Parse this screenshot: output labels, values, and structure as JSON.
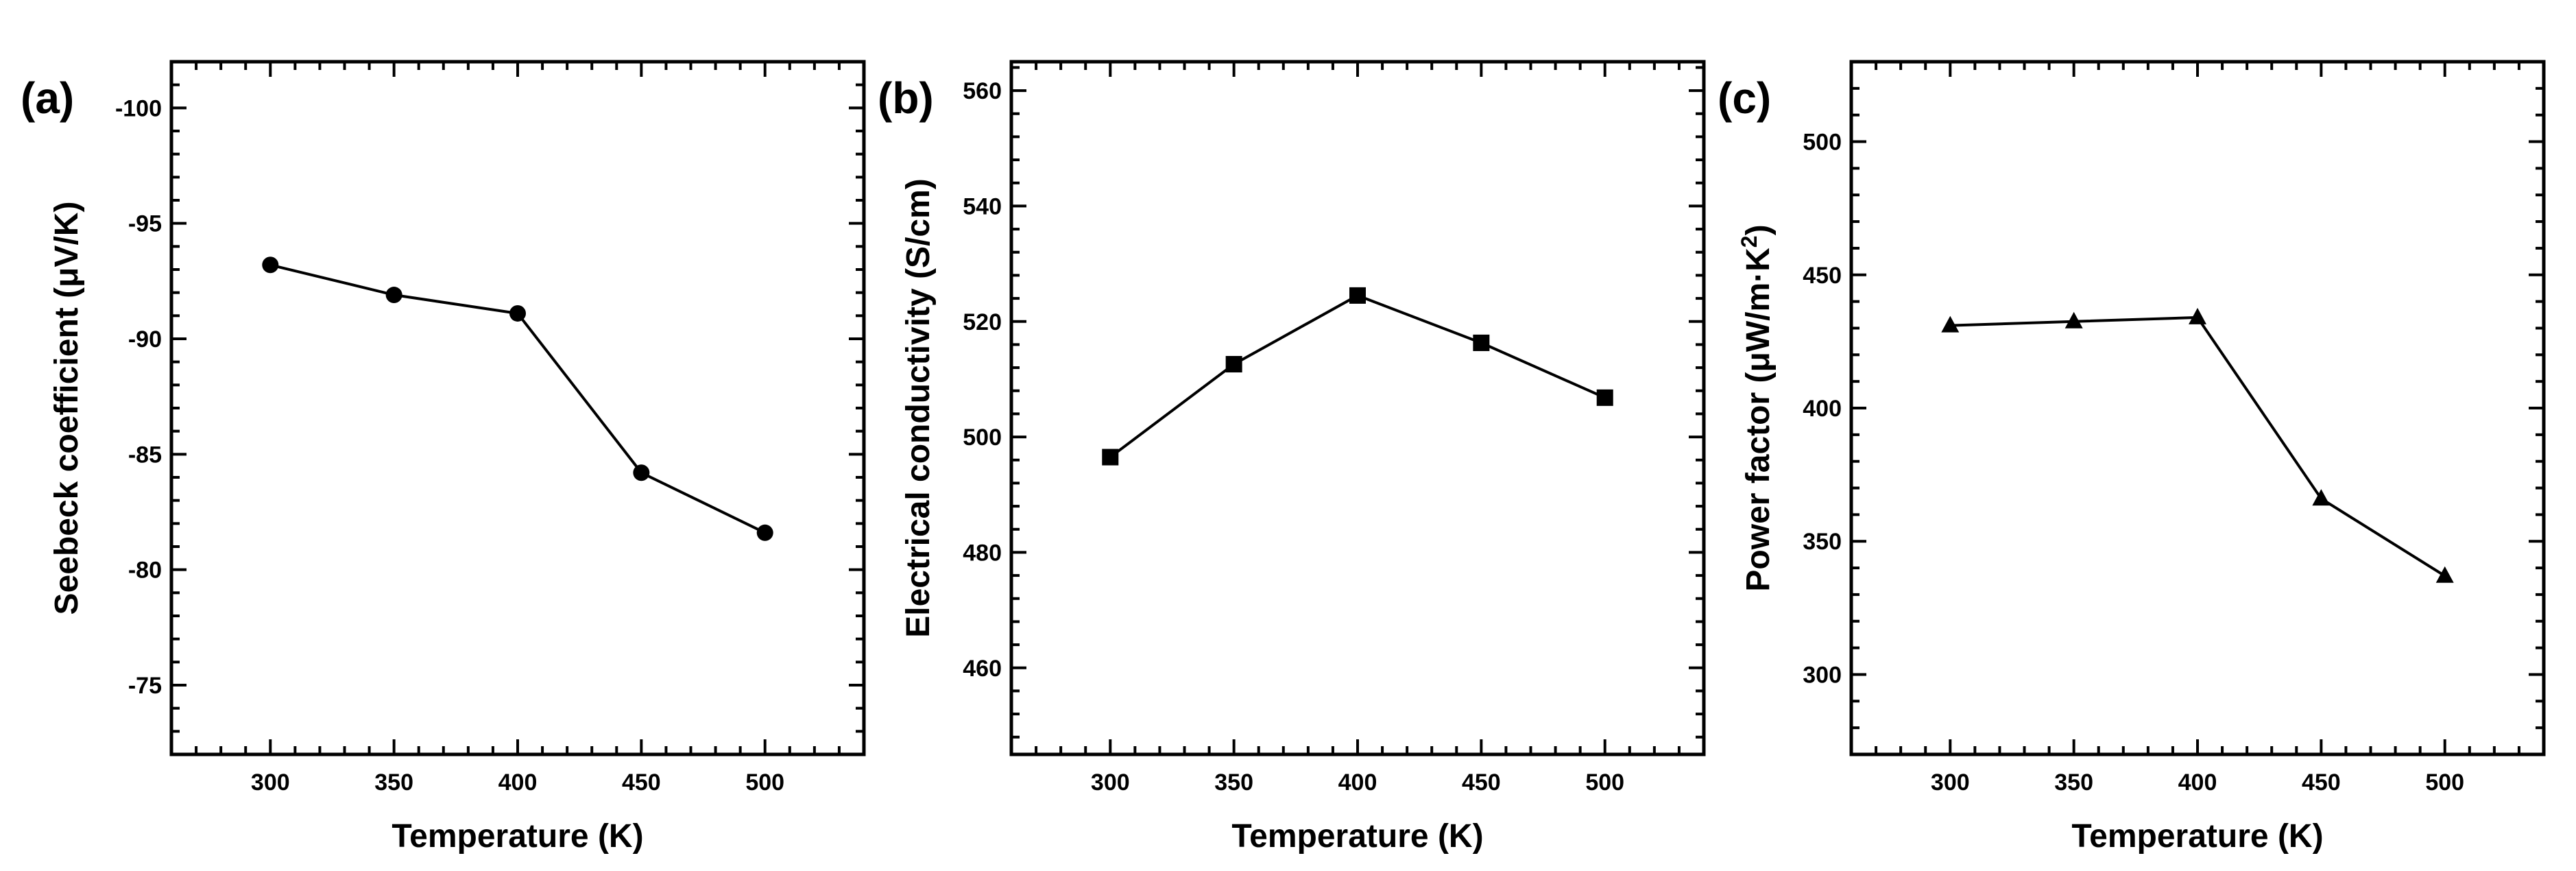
{
  "chart_data": [
    {
      "type": "line",
      "panel_label": "(a)",
      "title": "",
      "xlabel": "Temperature (K)",
      "ylabel_main": "Seebeck coefficient (",
      "ylabel_unit": "μV/K)",
      "x": [
        300,
        350,
        400,
        450,
        500
      ],
      "values": [
        -93.2,
        -91.9,
        -91.1,
        -84.2,
        -81.6
      ],
      "xlim": [
        260,
        540
      ],
      "ylim": [
        -72,
        -102
      ],
      "yticks": [
        -75,
        -80,
        -85,
        -90,
        -95,
        -100
      ],
      "ytick_labels": [
        "-75",
        "-80",
        "-85",
        "-90",
        "-95",
        "-100"
      ],
      "xticks": [
        300,
        350,
        400,
        450,
        500
      ],
      "xtick_labels": [
        "300",
        "350",
        "400",
        "450",
        "500"
      ],
      "marker": "circle",
      "grid": false
    },
    {
      "type": "line",
      "panel_label": "(b)",
      "title": "",
      "xlabel": "Temperature (K)",
      "ylabel_main": "Electrical conductivity (S/cm)",
      "ylabel_unit": "",
      "x": [
        300,
        350,
        400,
        450,
        500
      ],
      "values": [
        496.5,
        512.6,
        524.5,
        516.3,
        506.8
      ],
      "xlim": [
        260,
        540
      ],
      "ylim": [
        445,
        565
      ],
      "yticks": [
        460,
        480,
        500,
        520,
        540,
        560
      ],
      "ytick_labels": [
        "460",
        "480",
        "500",
        "520",
        "540",
        "560"
      ],
      "xticks": [
        300,
        350,
        400,
        450,
        500
      ],
      "xtick_labels": [
        "300",
        "350",
        "400",
        "450",
        "500"
      ],
      "marker": "square",
      "grid": false
    },
    {
      "type": "line",
      "panel_label": "(c)",
      "title": "",
      "xlabel": "Temperature (K)",
      "ylabel_main": "Power factor (",
      "ylabel_unit": "μW/m·K",
      "ylabel_sup": "2",
      "ylabel_close": ")",
      "x": [
        300,
        350,
        400,
        450,
        500
      ],
      "values": [
        431,
        432.5,
        434,
        366,
        337
      ],
      "xlim": [
        260,
        540
      ],
      "ylim": [
        270,
        530
      ],
      "yticks": [
        300,
        350,
        400,
        450,
        500
      ],
      "ytick_labels": [
        "300",
        "350",
        "400",
        "450",
        "500"
      ],
      "xticks": [
        300,
        350,
        400,
        450,
        500
      ],
      "xtick_labels": [
        "300",
        "350",
        "400",
        "450",
        "500"
      ],
      "marker": "triangle",
      "grid": false
    }
  ]
}
